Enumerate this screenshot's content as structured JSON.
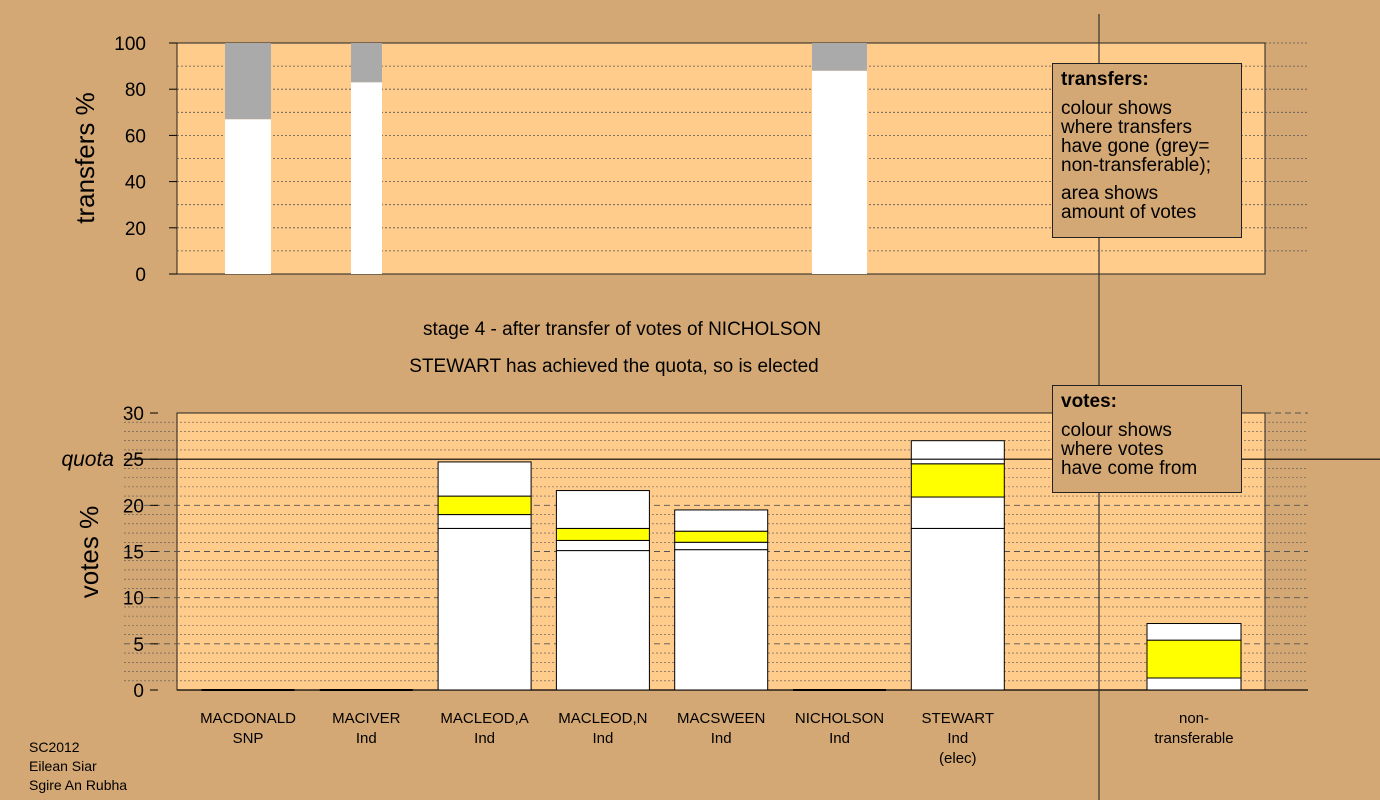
{
  "stage_lines": [
    "stage 4 - after transfer of votes of NICHOLSON",
    "STEWART has achieved the quota, so is elected"
  ],
  "legend_transfers": {
    "title": "transfers:",
    "lines1": [
      "colour shows",
      "where transfers",
      "have gone (grey=",
      "non-transferable);"
    ],
    "lines2": [
      "area shows",
      "amount of votes"
    ]
  },
  "legend_votes": {
    "title": "votes:",
    "lines": [
      "colour shows",
      "where votes",
      "have come from"
    ]
  },
  "footer": [
    "SC2012",
    "Eilean Siar",
    "Sgire An Rubha"
  ],
  "colors": {
    "background": "#d4a874",
    "plot": "#ffcc8c",
    "grey": "#aaaaaa",
    "white": "#ffffff",
    "yellow": "#ffff00"
  },
  "chart_data": [
    {
      "type": "bar",
      "ylabel": "transfers %",
      "ylim": [
        0,
        100
      ],
      "yticks": [
        0,
        20,
        40,
        60,
        80,
        100
      ],
      "grid": "dotted",
      "bars": [
        {
          "from": "MACDONALD",
          "segments": [
            {
              "color": "white",
              "value": 67
            },
            {
              "color": "grey",
              "value": 33
            }
          ]
        },
        {
          "from": "MACIVER",
          "segments": [
            {
              "color": "white",
              "value": 83
            },
            {
              "color": "grey",
              "value": 17
            }
          ]
        },
        {
          "from": "NICHOLSON",
          "segments": [
            {
              "color": "white",
              "value": 88
            },
            {
              "color": "grey",
              "value": 12
            }
          ]
        }
      ]
    },
    {
      "type": "bar",
      "stacked": true,
      "ylabel": "votes %",
      "ylim": [
        0,
        30
      ],
      "yticks": [
        0,
        5,
        10,
        15,
        20,
        25,
        30
      ],
      "quota": 25,
      "quota_label": "quota",
      "candidates": [
        {
          "name": "MACDONALD",
          "party": "SNP",
          "segments": []
        },
        {
          "name": "MACIVER",
          "party": "Ind",
          "segments": []
        },
        {
          "name": "MACLEOD,A",
          "party": "Ind",
          "segments": [
            {
              "color": "white",
              "value": 17.5
            },
            {
              "color": "white",
              "value": 1.5
            },
            {
              "color": "yellow",
              "value": 2.0
            },
            {
              "color": "white",
              "value": 3.7
            }
          ]
        },
        {
          "name": "MACLEOD,N",
          "party": "Ind",
          "segments": [
            {
              "color": "white",
              "value": 15.1
            },
            {
              "color": "white",
              "value": 1.1
            },
            {
              "color": "yellow",
              "value": 1.3
            },
            {
              "color": "white",
              "value": 4.1
            }
          ]
        },
        {
          "name": "MACSWEEN",
          "party": "Ind",
          "segments": [
            {
              "color": "white",
              "value": 15.2
            },
            {
              "color": "white",
              "value": 0.8
            },
            {
              "color": "yellow",
              "value": 1.2
            },
            {
              "color": "white",
              "value": 2.3
            }
          ]
        },
        {
          "name": "NICHOLSON",
          "party": "Ind",
          "segments": []
        },
        {
          "name": "STEWART",
          "party": "Ind",
          "status": "(elec)",
          "segments": [
            {
              "color": "white",
              "value": 17.5
            },
            {
              "color": "white",
              "value": 3.4
            },
            {
              "color": "yellow",
              "value": 3.6
            },
            {
              "color": "white",
              "value": 2.5
            }
          ]
        }
      ],
      "nontransferable": {
        "name": "non-",
        "name2": "transferable",
        "segments": [
          {
            "color": "white",
            "value": 1.3
          },
          {
            "color": "yellow",
            "value": 4.1
          },
          {
            "color": "white",
            "value": 1.8
          }
        ]
      }
    }
  ]
}
